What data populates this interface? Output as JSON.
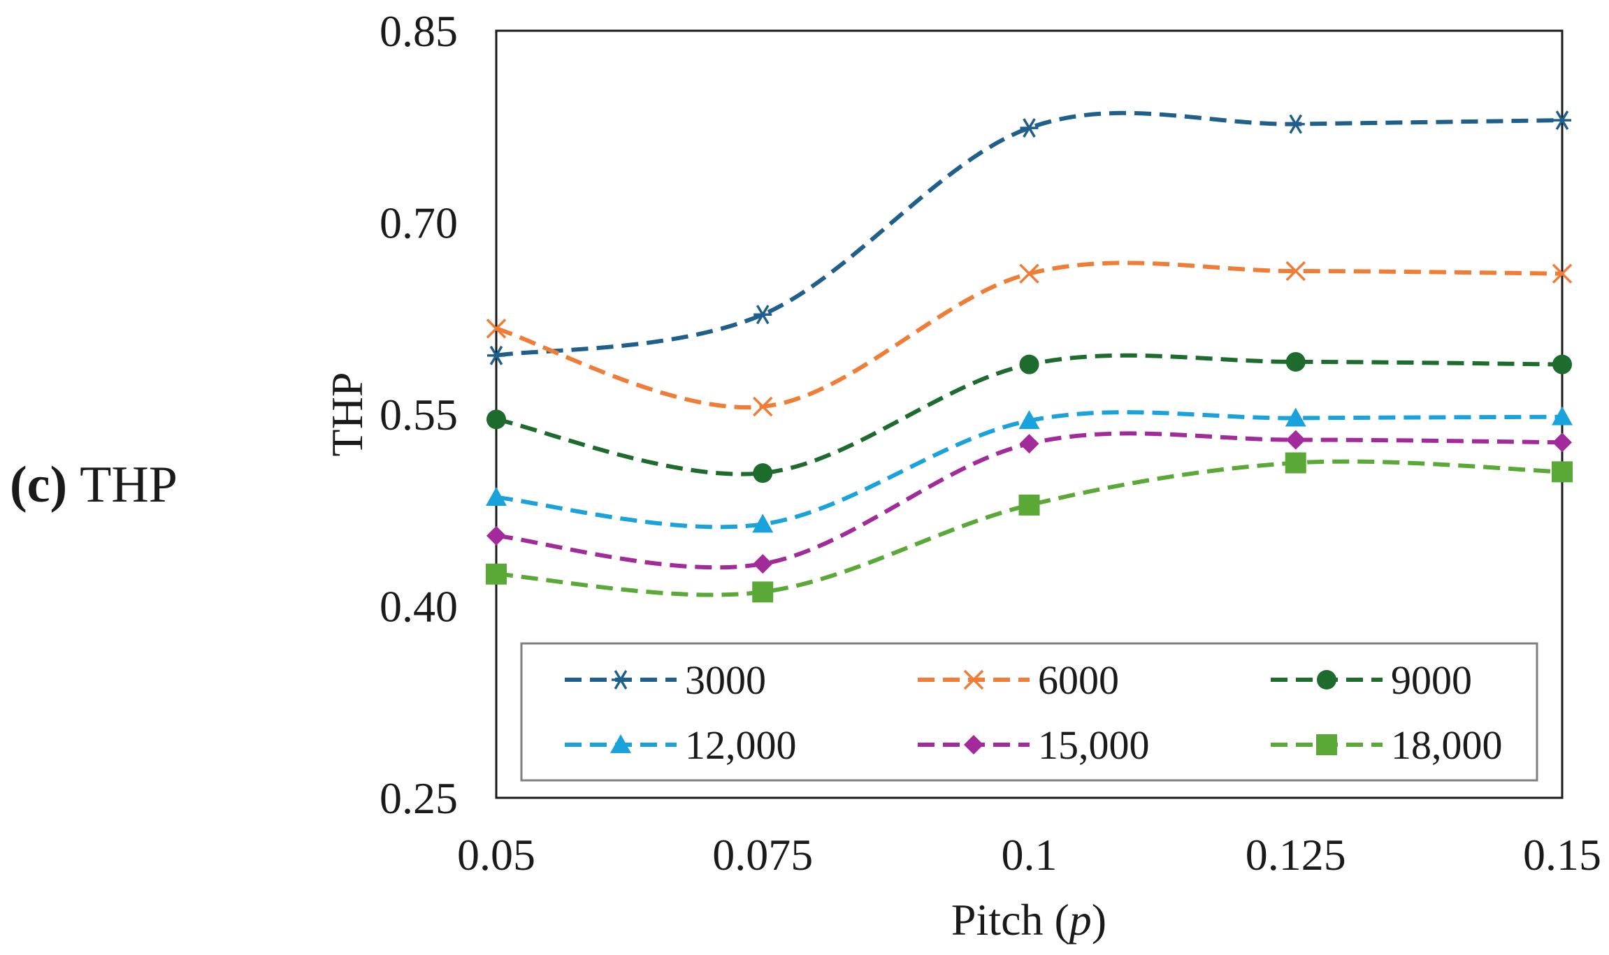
{
  "panel": {
    "label": "(c)",
    "title": "THP"
  },
  "chart_data": {
    "type": "line",
    "title": "",
    "xlabel": "Pitch (p)",
    "ylabel": "THP",
    "x": [
      0.05,
      0.075,
      0.1,
      0.125,
      0.15
    ],
    "x_tick_labels": [
      "0.05",
      "0.075",
      "0.1",
      "0.125",
      "0.15"
    ],
    "y_ticks": [
      0.85,
      0.7,
      0.55,
      0.4,
      0.25
    ],
    "y_tick_labels": [
      "0.85",
      "0.70",
      "0.55",
      "0.40",
      "0.25"
    ],
    "ylim": [
      0.25,
      0.85
    ],
    "xlim": [
      0.05,
      0.15
    ],
    "grid": false,
    "legend_position": "bottom",
    "series": [
      {
        "name": "3000",
        "values": [
          0.596,
          0.628,
          0.774,
          0.777,
          0.78
        ],
        "color": "#1f5f8b",
        "marker": "asterisk"
      },
      {
        "name": "6000",
        "values": [
          0.617,
          0.556,
          0.66,
          0.662,
          0.66
        ],
        "color": "#f07c35",
        "marker": "x"
      },
      {
        "name": "9000",
        "values": [
          0.546,
          0.504,
          0.589,
          0.591,
          0.589
        ],
        "color": "#1e6b2e",
        "marker": "circle"
      },
      {
        "name": "12,000",
        "values": [
          0.485,
          0.464,
          0.545,
          0.547,
          0.548
        ],
        "color": "#1aa2dc",
        "marker": "triangle"
      },
      {
        "name": "15,000",
        "values": [
          0.455,
          0.433,
          0.527,
          0.53,
          0.528
        ],
        "color": "#a32a9a",
        "marker": "diamond"
      },
      {
        "name": "18,000",
        "values": [
          0.425,
          0.411,
          0.479,
          0.512,
          0.505
        ],
        "color": "#5aa937",
        "marker": "square"
      }
    ]
  }
}
